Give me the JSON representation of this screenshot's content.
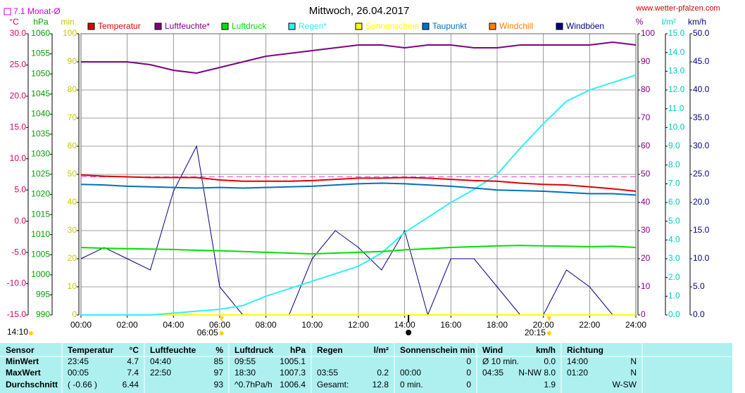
{
  "header": {
    "title": "Mittwoch, 26.04.2017",
    "site": "www.wetter-pfalzen.com"
  },
  "chart_data": {
    "type": "line",
    "x": [
      0,
      1,
      2,
      3,
      4,
      5,
      6,
      7,
      8,
      9,
      10,
      11,
      12,
      13,
      14,
      15,
      16,
      17,
      18,
      19,
      20,
      21,
      22,
      23,
      24
    ],
    "xlim": [
      0,
      24
    ],
    "xticks": [
      {
        "value": 0,
        "label": "00:00"
      },
      {
        "value": 2,
        "label": "02:00"
      },
      {
        "value": 4,
        "label": "04:00"
      },
      {
        "value": 6,
        "label": "06:00"
      },
      {
        "value": 8,
        "label": "08:00"
      },
      {
        "value": 10,
        "label": "10:00"
      },
      {
        "value": 12,
        "label": "12:00"
      },
      {
        "value": 14,
        "label": "14:00"
      },
      {
        "value": 16,
        "label": "16:00"
      },
      {
        "value": 18,
        "label": "18:00"
      },
      {
        "value": 20,
        "label": "20:00"
      },
      {
        "value": 22,
        "label": "22:00"
      },
      {
        "value": 24,
        "label": "24:00"
      }
    ],
    "grid": true,
    "axes": [
      {
        "name": "°C",
        "side": "left",
        "color": "#d0006a",
        "ylim": [
          -15,
          30
        ],
        "yticks": [
          {
            "value": 30,
            "label": "30.0"
          },
          {
            "value": 25,
            "label": "25.0"
          },
          {
            "value": 20,
            "label": "20.0"
          },
          {
            "value": 15,
            "label": "15.0"
          },
          {
            "value": 10,
            "label": "10.0"
          },
          {
            "value": 5,
            "label": "5.0"
          },
          {
            "value": 0,
            "label": "0.0"
          },
          {
            "value": -5,
            "label": "-5.0"
          },
          {
            "value": -10,
            "label": "-10.0"
          },
          {
            "value": -15,
            "label": "-15.0"
          }
        ]
      },
      {
        "name": "hPa",
        "side": "left",
        "color": "#00a000",
        "ylim": [
          990,
          1060
        ],
        "yticks": [
          1060,
          1055,
          1050,
          1045,
          1040,
          1035,
          1030,
          1025,
          1020,
          1015,
          1010,
          1005,
          1000,
          995,
          990
        ]
      },
      {
        "name": "min",
        "side": "left",
        "color": "#c8c800",
        "ylim": [
          0,
          100
        ],
        "yticks": [
          100,
          90,
          80,
          70,
          60,
          50,
          40,
          30,
          20,
          10,
          0
        ]
      },
      {
        "name": "%",
        "side": "right",
        "color": "#800080",
        "ylim": [
          0,
          100
        ],
        "yticks": [
          100,
          90,
          80,
          70,
          60,
          50,
          40,
          30,
          20,
          10,
          0
        ]
      },
      {
        "name": "l/m²",
        "side": "right",
        "color": "#00c8c8",
        "ylim": [
          0,
          15
        ],
        "yticks": [
          {
            "value": 15,
            "label": "15.0"
          },
          {
            "value": 14,
            "label": "14.0"
          },
          {
            "value": 13,
            "label": "13.0"
          },
          {
            "value": 12,
            "label": "12.0"
          },
          {
            "value": 11,
            "label": "11.0"
          },
          {
            "value": 10,
            "label": "10.0"
          },
          {
            "value": 9,
            "label": "9.0"
          },
          {
            "value": 8,
            "label": "8.0"
          },
          {
            "value": 7,
            "label": "7.0"
          },
          {
            "value": 6,
            "label": "6.0"
          },
          {
            "value": 5,
            "label": "5.0"
          },
          {
            "value": 4,
            "label": "4.0"
          },
          {
            "value": 3,
            "label": "3.0"
          },
          {
            "value": 2,
            "label": "2.0"
          },
          {
            "value": 1,
            "label": "1.0"
          },
          {
            "value": 0,
            "label": "0.0"
          }
        ]
      },
      {
        "name": "km/h",
        "side": "right",
        "color": "#000080",
        "ylim": [
          0,
          50
        ],
        "yticks": [
          {
            "value": 50,
            "label": "50.0"
          },
          {
            "value": 45,
            "label": "45.0"
          },
          {
            "value": 40,
            "label": "40.0"
          },
          {
            "value": 35,
            "label": "35.0"
          },
          {
            "value": 30,
            "label": "30.0"
          },
          {
            "value": 25,
            "label": "25.0"
          },
          {
            "value": 20,
            "label": "20.0"
          },
          {
            "value": 15,
            "label": "15.0"
          },
          {
            "value": 10,
            "label": "10.0"
          },
          {
            "value": 5,
            "label": "5.0"
          },
          {
            "value": 0,
            "label": "0.0"
          }
        ]
      }
    ],
    "series": [
      {
        "name": "Temperatur",
        "color": "#e00000",
        "axis": "°C",
        "values": [
          7.4,
          7.2,
          7.1,
          7.0,
          7.0,
          7.0,
          6.6,
          6.4,
          6.4,
          6.4,
          6.5,
          6.7,
          6.9,
          6.9,
          7.0,
          6.9,
          6.7,
          6.5,
          6.4,
          6.1,
          5.9,
          5.8,
          5.5,
          5.2,
          4.8
        ]
      },
      {
        "name": "Luftfeuchte*",
        "color": "#800080",
        "axis": "%",
        "values": [
          90,
          90,
          90,
          89,
          87,
          86,
          88,
          90,
          92,
          93,
          94,
          95,
          96,
          96,
          95,
          96,
          96,
          95,
          95,
          96,
          96,
          96,
          96,
          97,
          96
        ]
      },
      {
        "name": "Luftdruck",
        "color": "#00e000",
        "axis": "hPa",
        "values": [
          1006.8,
          1006.6,
          1006.5,
          1006.4,
          1006.3,
          1006.1,
          1006.0,
          1005.8,
          1005.6,
          1005.4,
          1005.2,
          1005.4,
          1005.6,
          1005.8,
          1006.2,
          1006.5,
          1006.8,
          1007.0,
          1007.2,
          1007.3,
          1007.2,
          1007.1,
          1007.0,
          1007.1,
          1006.8
        ]
      },
      {
        "name": "Regen*",
        "color": "#30f0f0",
        "axis": "l/m²",
        "values": [
          0,
          0,
          0,
          0,
          0.1,
          0.2,
          0.3,
          0.5,
          1.0,
          1.4,
          1.8,
          2.2,
          2.6,
          3.3,
          4.4,
          5.2,
          6.0,
          6.7,
          7.5,
          8.9,
          10.2,
          11.4,
          12.0,
          12.4,
          12.8
        ]
      },
      {
        "name": "Sonnenschein",
        "color": "#ffff00",
        "axis": "min",
        "values": [
          0,
          0,
          0,
          0,
          0,
          0,
          0,
          0,
          0,
          0,
          0,
          0,
          0,
          0,
          0,
          0,
          0,
          0,
          0,
          0,
          0,
          0,
          0,
          0,
          0
        ]
      },
      {
        "name": "Taupunkt",
        "color": "#0070c0",
        "axis": "°C",
        "values": [
          5.9,
          5.8,
          5.6,
          5.5,
          5.4,
          5.3,
          5.4,
          5.3,
          5.4,
          5.5,
          5.6,
          5.8,
          6.0,
          6.1,
          6.0,
          5.8,
          5.6,
          5.3,
          5.0,
          4.9,
          4.8,
          4.6,
          4.4,
          4.4,
          4.2
        ]
      },
      {
        "name": "Windchill",
        "color": "#ff8000",
        "axis": "°C",
        "values": [
          null,
          null,
          null,
          null,
          null,
          null,
          null,
          null,
          null,
          null,
          null,
          null,
          null,
          null,
          null,
          null,
          null,
          null,
          null,
          null,
          null,
          null,
          null,
          null,
          null
        ]
      },
      {
        "name": "Windböen",
        "color": "#000080",
        "axis": "km/h",
        "values": [
          10,
          12,
          10,
          8,
          22,
          30,
          5,
          0,
          0,
          0,
          10,
          15,
          12,
          8,
          15,
          0,
          10,
          10,
          5,
          0,
          0,
          8,
          5,
          0,
          0
        ]
      }
    ],
    "monthly_avg": {
      "label": "7.1 Monat-Ø",
      "value": 7.1,
      "axis": "°C"
    },
    "sunrise": {
      "label": "06:05",
      "value": 6.0833
    },
    "sunset": {
      "label": "20:15",
      "value": 20.25
    },
    "current_time": {
      "label": "14:10",
      "value": 14.1667
    }
  },
  "table": {
    "columns": [
      {
        "header": "Sensor",
        "rows": [
          {
            "left": "MinWert"
          },
          {
            "left": "MaxWert"
          },
          {
            "left": "Durchschnitt"
          }
        ]
      },
      {
        "header": "Temperatur",
        "unit": "°C",
        "rows": [
          {
            "left": "23:45",
            "right": "4.7"
          },
          {
            "left": "00:05",
            "right": "7.4"
          },
          {
            "left": "( -0.66 )",
            "right": "6.44"
          }
        ]
      },
      {
        "header": "Luftfeuchte",
        "unit": "%",
        "rows": [
          {
            "left": "04:40",
            "right": "85"
          },
          {
            "left": "22:50",
            "right": "97"
          },
          {
            "right": "93"
          }
        ]
      },
      {
        "header": "Luftdruck",
        "unit": "hPa",
        "rows": [
          {
            "left": "09:55",
            "right": "1005.1"
          },
          {
            "left": "18:30",
            "right": "1007.3"
          },
          {
            "left": "^0.7hPa/h",
            "right": "1006.4"
          }
        ]
      },
      {
        "header": "Regen",
        "unit": "l/m²",
        "rows": [
          {},
          {
            "left": "03:55",
            "right": "0.2"
          },
          {
            "left": "Gesamt:",
            "right": "12.8"
          }
        ]
      },
      {
        "header": "Sonnenschein min",
        "rows": [
          {
            "right": "0"
          },
          {
            "left": "00:00",
            "right": "0"
          },
          {
            "left": "0 min.",
            "right": "0"
          }
        ]
      },
      {
        "header": "Wind",
        "unit": "km/h",
        "rows": [
          {
            "left": "Ø 10 min.",
            "right": "0.0"
          },
          {
            "left": "04:35",
            "right": "N-NW 8.0"
          },
          {
            "right": "1.9"
          }
        ]
      },
      {
        "header": "Richtung",
        "rows": [
          {
            "left": "14:00",
            "right": "N"
          },
          {
            "left": "01:20",
            "right": "N"
          },
          {
            "right": "W-SW"
          }
        ]
      }
    ]
  }
}
